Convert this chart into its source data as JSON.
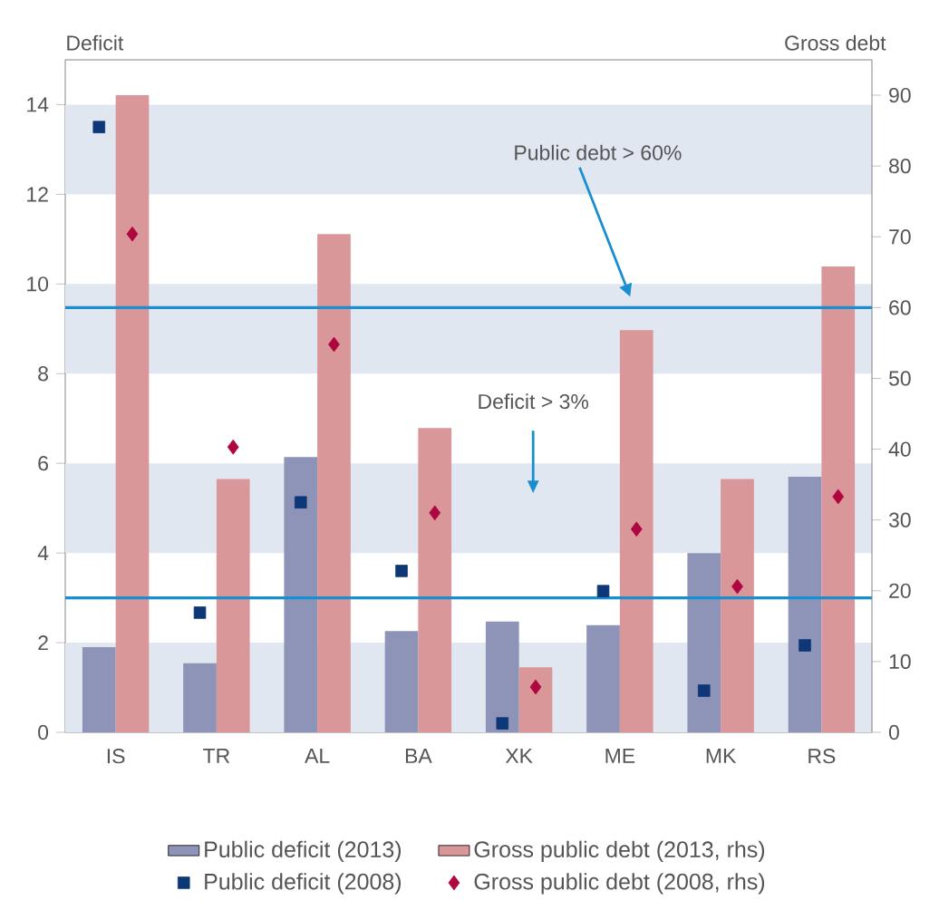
{
  "chart_data": {
    "type": "bar",
    "xlabel": null,
    "ylabel": "Deficit",
    "y2label": "Gross debt",
    "categories": [
      "IS",
      "TR",
      "AL",
      "BA",
      "XK",
      "ME",
      "MK",
      "RS"
    ],
    "series": [
      {
        "name": "Public deficit (2013)",
        "color": "#8e93b8",
        "values": [
          1.9,
          1.54,
          6.14,
          2.26,
          2.47,
          2.39,
          4.0,
          5.7
        ]
      },
      {
        "name": "Gross public debt (2013, rhs)",
        "axis": "y2",
        "color": "#d9979a",
        "values": [
          90,
          35.8,
          70.4,
          43,
          9.2,
          56.8,
          35.8,
          65.8
        ]
      },
      {
        "name": "Public deficit (2008)",
        "type": "scatter",
        "marker": "square",
        "color": "#0e3778",
        "values": [
          13.5,
          2.67,
          5.13,
          3.6,
          0.2,
          3.15,
          0.93,
          1.94
        ]
      },
      {
        "name": "Gross public debt (2008, rhs)",
        "type": "scatter",
        "marker": "diamond",
        "axis": "y2",
        "color": "#b0063f",
        "values": [
          70.4,
          40.3,
          54.8,
          31,
          6.4,
          28.7,
          20.6,
          33.3
        ]
      }
    ],
    "ylim": [
      0,
      15
    ],
    "yticks": [
      0,
      2,
      4,
      6,
      8,
      10,
      12,
      14
    ],
    "y2lim": [
      0,
      95
    ],
    "y2ticks": [
      0,
      10,
      20,
      30,
      40,
      50,
      60,
      70,
      80,
      90
    ],
    "ref_lines": [
      {
        "axis": "y2",
        "value": 60,
        "color": "#1a8fd0"
      },
      {
        "axis": "y",
        "value": 3,
        "color": "#1a8fd0"
      }
    ],
    "annotations": [
      "Public  debt > 60%",
      "Deficit > 3%"
    ],
    "bands": [
      {
        "axis": "y",
        "from": 0,
        "to": 2,
        "color": "#e1e7f1"
      },
      {
        "axis": "y",
        "from": 4,
        "to": 6,
        "color": "#e1e7f1"
      },
      {
        "axis": "y",
        "from": 8,
        "to": 10,
        "color": "#e1e7f1"
      },
      {
        "axis": "y",
        "from": 12,
        "to": 14,
        "color": "#e1e7f1"
      }
    ],
    "grid": false,
    "legend": "bottom"
  }
}
